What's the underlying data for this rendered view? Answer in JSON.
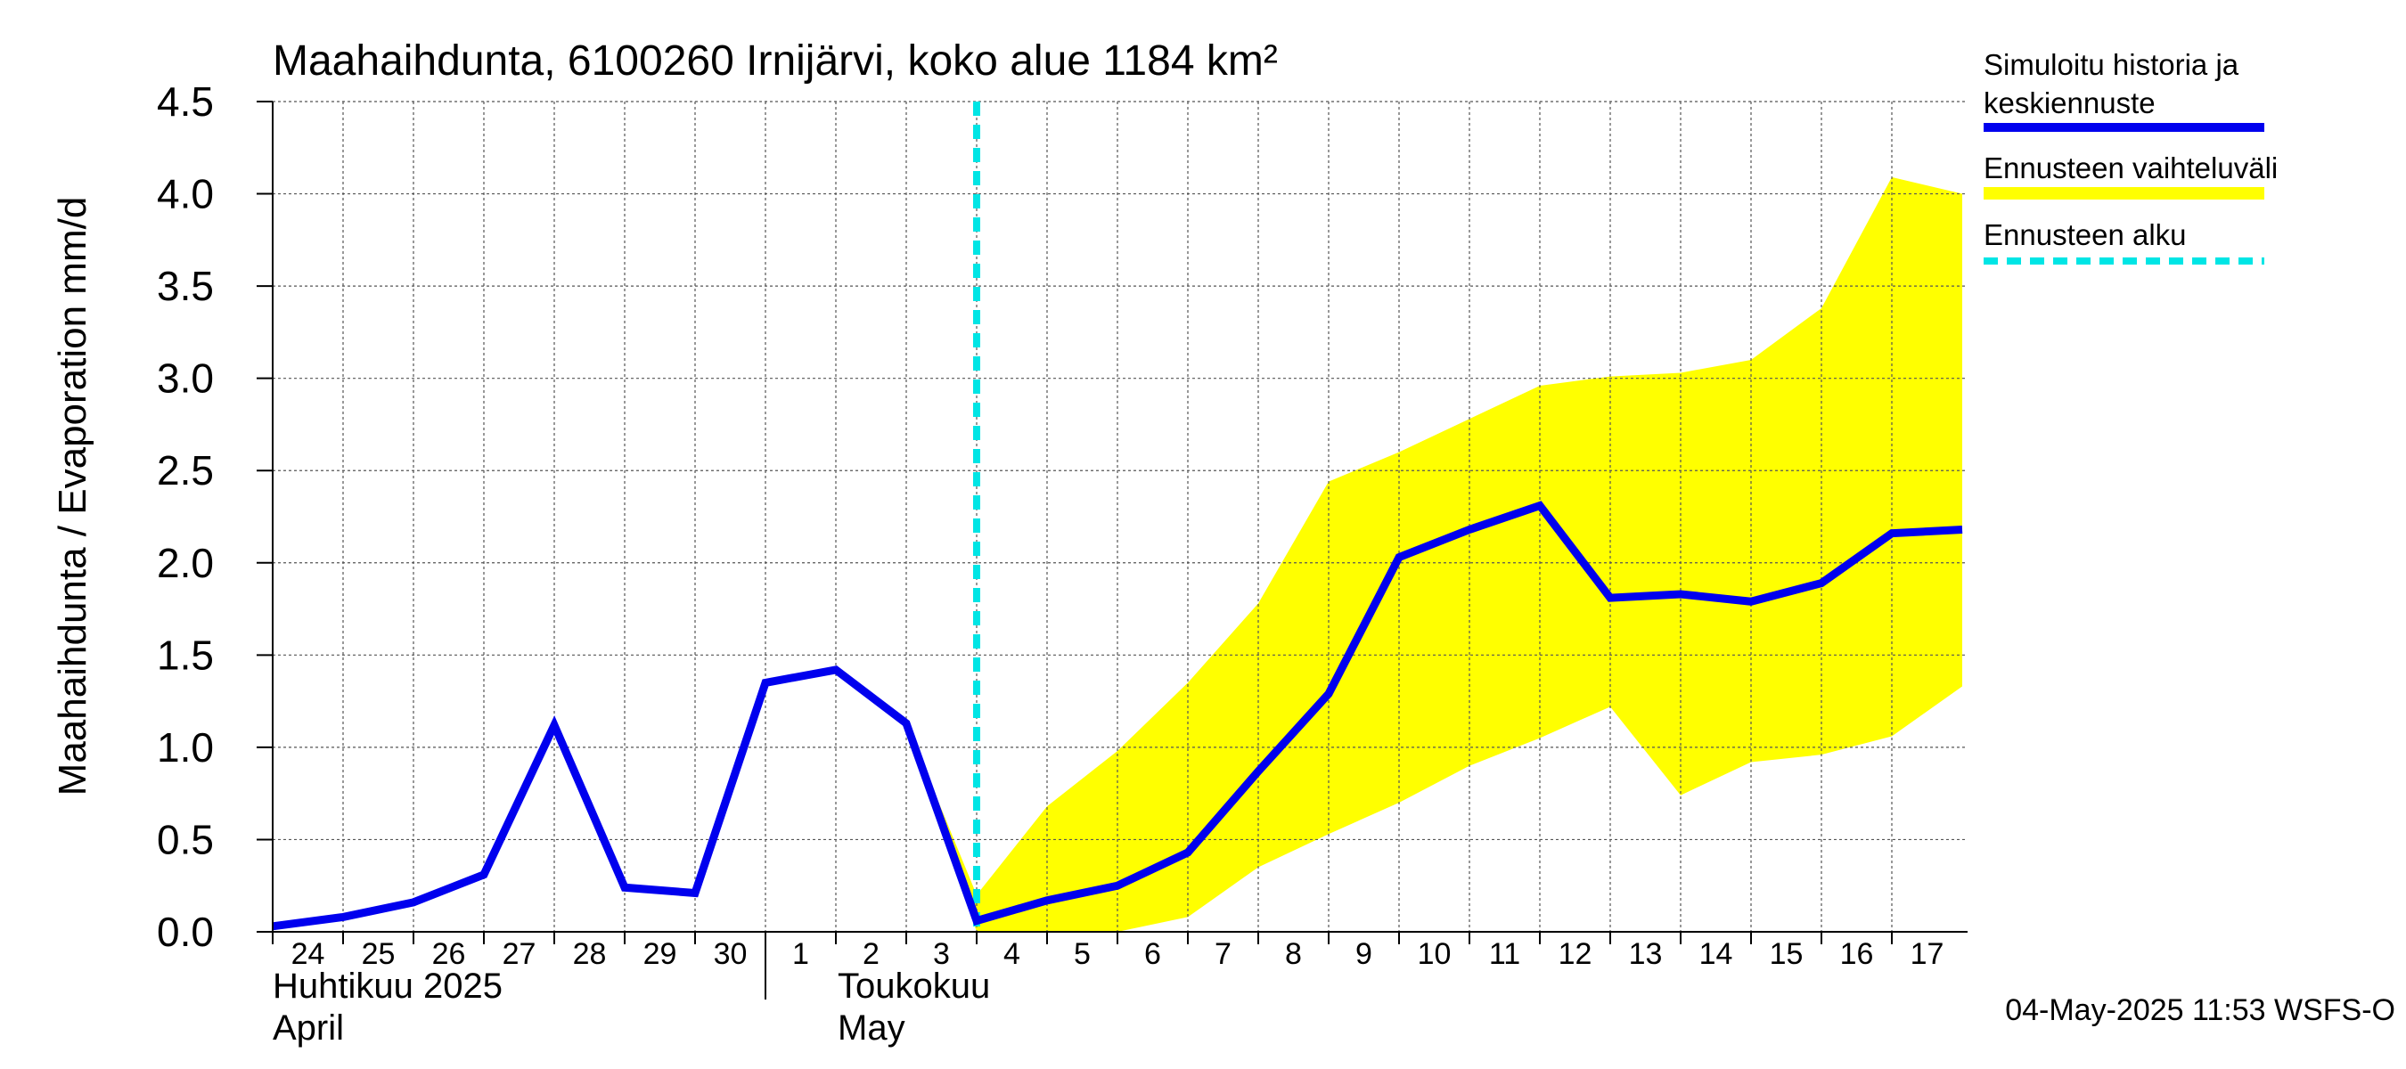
{
  "chart_data": {
    "type": "line",
    "title": "Maahaihdunta, 6100260 Irnijärvi, koko alue 1184 km²",
    "ylabel": "Maahaihdunta / Evaporation   mm/d",
    "ylim": [
      0,
      4.5
    ],
    "yticks": [
      "0.0",
      "0.5",
      "1.0",
      "1.5",
      "2.0",
      "2.5",
      "3.0",
      "3.5",
      "4.0",
      "4.5"
    ],
    "xlim": [
      "2025-04-24",
      "2025-05-18"
    ],
    "xticks": [
      {
        "date": "2025-04-24",
        "label": "24"
      },
      {
        "date": "2025-04-25",
        "label": "25"
      },
      {
        "date": "2025-04-26",
        "label": "26"
      },
      {
        "date": "2025-04-27",
        "label": "27"
      },
      {
        "date": "2025-04-28",
        "label": "28"
      },
      {
        "date": "2025-04-29",
        "label": "29"
      },
      {
        "date": "2025-04-30",
        "label": "30"
      },
      {
        "date": "2025-05-01",
        "label": "1"
      },
      {
        "date": "2025-05-02",
        "label": "2"
      },
      {
        "date": "2025-05-03",
        "label": "3"
      },
      {
        "date": "2025-05-04",
        "label": "4"
      },
      {
        "date": "2025-05-05",
        "label": "5"
      },
      {
        "date": "2025-05-06",
        "label": "6"
      },
      {
        "date": "2025-05-07",
        "label": "7"
      },
      {
        "date": "2025-05-08",
        "label": "8"
      },
      {
        "date": "2025-05-09",
        "label": "9"
      },
      {
        "date": "2025-05-10",
        "label": "10"
      },
      {
        "date": "2025-05-11",
        "label": "11"
      },
      {
        "date": "2025-05-12",
        "label": "12"
      },
      {
        "date": "2025-05-13",
        "label": "13"
      },
      {
        "date": "2025-05-14",
        "label": "14"
      },
      {
        "date": "2025-05-15",
        "label": "15"
      },
      {
        "date": "2025-05-16",
        "label": "16"
      },
      {
        "date": "2025-05-17",
        "label": "17"
      }
    ],
    "month_labels": [
      {
        "line1": "Huhtikuu  2025",
        "line2": "April"
      },
      {
        "line1": "Toukokuu",
        "line2": "May"
      }
    ],
    "grid": true,
    "legend_position": "right",
    "forecast_start": "2025-05-04",
    "series": [
      {
        "name": "Simuloitu historia ja keskiennuste",
        "color": "#0000ee",
        "points": [
          [
            "2025-04-24",
            0.03
          ],
          [
            "2025-04-25",
            0.08
          ],
          [
            "2025-04-26",
            0.16
          ],
          [
            "2025-04-27",
            0.31
          ],
          [
            "2025-04-28",
            1.12
          ],
          [
            "2025-04-29",
            0.24
          ],
          [
            "2025-04-30",
            0.21
          ],
          [
            "2025-05-01",
            1.35
          ],
          [
            "2025-05-02",
            1.42
          ],
          [
            "2025-05-03",
            1.13
          ],
          [
            "2025-05-04",
            0.06
          ],
          [
            "2025-05-05",
            0.17
          ],
          [
            "2025-05-06",
            0.25
          ],
          [
            "2025-05-07",
            0.43
          ],
          [
            "2025-05-08",
            0.87
          ],
          [
            "2025-05-09",
            1.29
          ],
          [
            "2025-05-10",
            2.03
          ],
          [
            "2025-05-11",
            2.18
          ],
          [
            "2025-05-12",
            2.31
          ],
          [
            "2025-05-13",
            1.81
          ],
          [
            "2025-05-14",
            1.83
          ],
          [
            "2025-05-15",
            1.79
          ],
          [
            "2025-05-16",
            1.89
          ],
          [
            "2025-05-17",
            2.16
          ],
          [
            "2025-05-18",
            2.18
          ]
        ]
      }
    ],
    "band": {
      "name": "Ennusteen vaihteluväli",
      "color": "#ffff00",
      "points": [
        [
          "2025-05-03",
          1.13,
          1.13
        ],
        [
          "2025-05-04",
          0.0,
          0.2
        ],
        [
          "2025-05-05",
          0.0,
          0.68
        ],
        [
          "2025-05-06",
          0.0,
          0.98
        ],
        [
          "2025-05-07",
          0.08,
          1.35
        ],
        [
          "2025-05-08",
          0.35,
          1.78
        ],
        [
          "2025-05-09",
          0.53,
          2.44
        ],
        [
          "2025-05-10",
          0.7,
          2.6
        ],
        [
          "2025-05-11",
          0.9,
          2.78
        ],
        [
          "2025-05-12",
          1.05,
          2.96
        ],
        [
          "2025-05-13",
          1.22,
          3.01
        ],
        [
          "2025-05-14",
          0.74,
          3.03
        ],
        [
          "2025-05-15",
          0.92,
          3.1
        ],
        [
          "2025-05-16",
          0.96,
          3.38
        ],
        [
          "2025-05-17",
          1.06,
          4.09
        ],
        [
          "2025-05-18",
          1.33,
          4.0
        ]
      ]
    },
    "legend": [
      {
        "label": "Simuloitu historia ja keskiennuste",
        "style": "solid",
        "color": "#0000ee"
      },
      {
        "label": "Ennusteen vaihteluväli",
        "style": "band",
        "color": "#ffff00"
      },
      {
        "label": "Ennusteen alku",
        "style": "dashed",
        "color": "#00e5e5"
      }
    ],
    "footer": "04-May-2025 11:53 WSFS-O"
  }
}
